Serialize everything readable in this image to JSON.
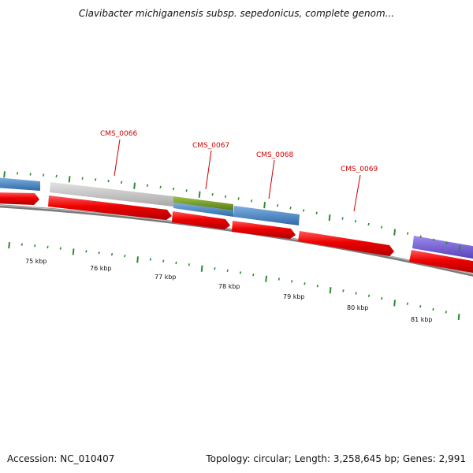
{
  "title": "Clavibacter michiganensis subsp. sepedonicus, complete genom...",
  "footer": {
    "accession": "Accession: NC_010407",
    "summary": "Topology: circular; Length: 3,258,645 bp; Genes: 2,991"
  },
  "colors": {
    "backbone": "#7a7a7a",
    "cds": "#e80000",
    "gene_label": "#cc0000",
    "tick": "#2f8a2f",
    "feature_blue": "#3d7fbf",
    "feature_grey": "#c2c2c2",
    "feature_olive": "#6f9a24",
    "feature_purple": "#6a55cc"
  },
  "gene_labels": [
    "CMS_0066",
    "CMS_0067",
    "CMS_0068",
    "CMS_0069"
  ],
  "position_labels": [
    "75 kbp",
    "76 kbp",
    "77 kbp",
    "78 kbp",
    "79 kbp",
    "80 kbp",
    "81 kbp"
  ]
}
